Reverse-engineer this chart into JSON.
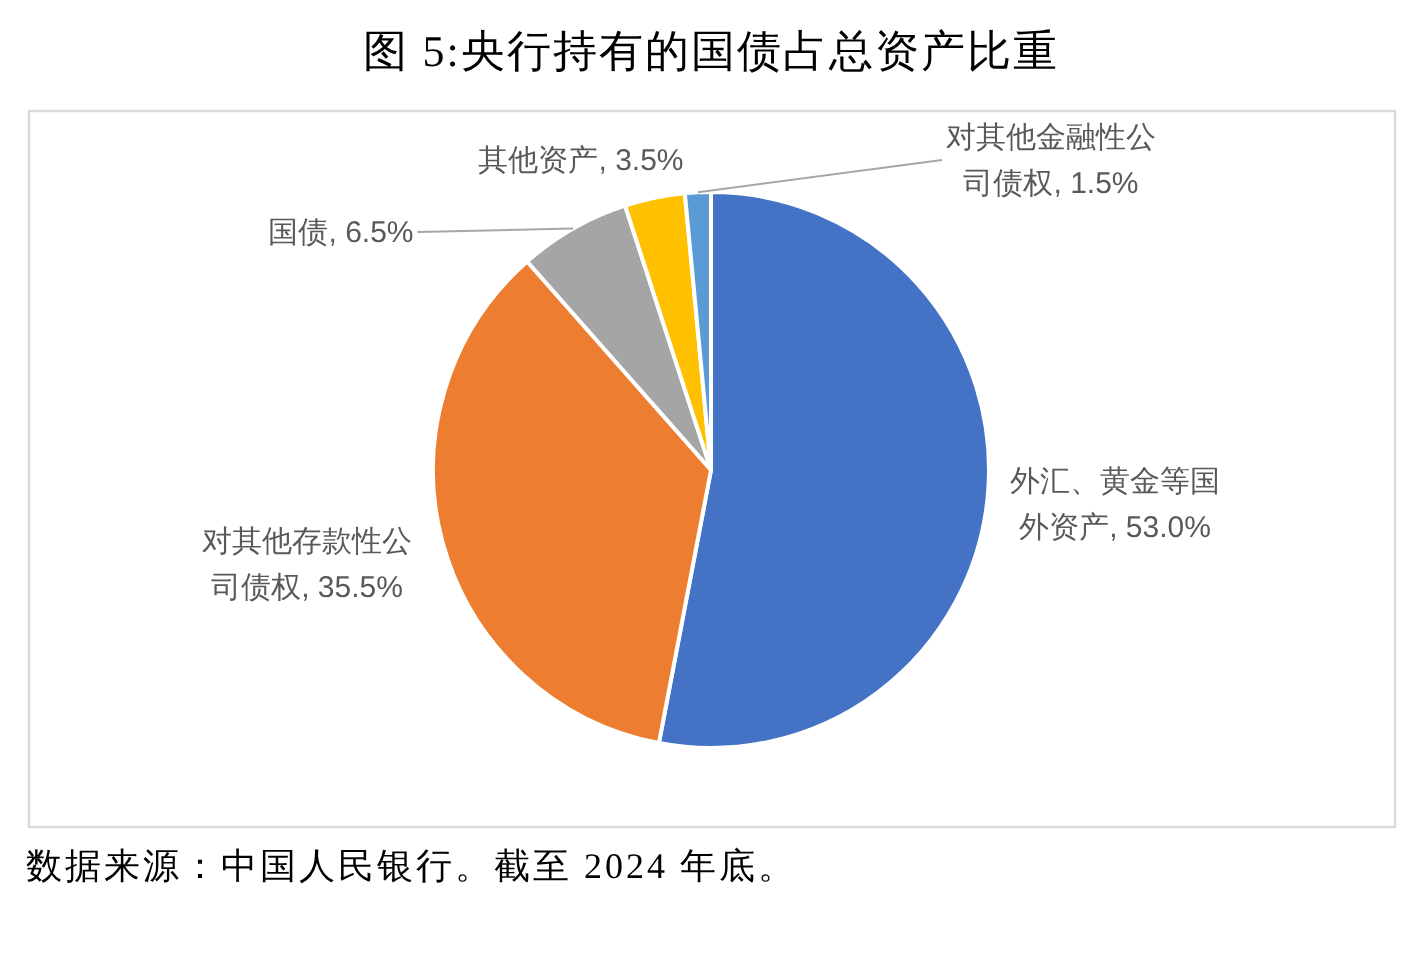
{
  "chart_data": {
    "type": "pie",
    "title": "图 5:央行持有的国债占总资产比重",
    "categories": [
      "外汇、黄金等国外资产",
      "对其他存款性公司债权",
      "国债",
      "其他资产",
      "对其他金融性公司债权"
    ],
    "values": [
      53.0,
      35.5,
      6.5,
      3.5,
      1.5
    ],
    "colors": [
      "#4472c4",
      "#ed7d31",
      "#a5a5a5",
      "#ffc000",
      "#5b9bd5"
    ],
    "value_labels": [
      "53.0%",
      "35.5%",
      "6.5%",
      "3.5%",
      "1.5%"
    ],
    "annotations": [
      "数据来源：中国人民银行。截至 2024 年底。"
    ]
  }
}
